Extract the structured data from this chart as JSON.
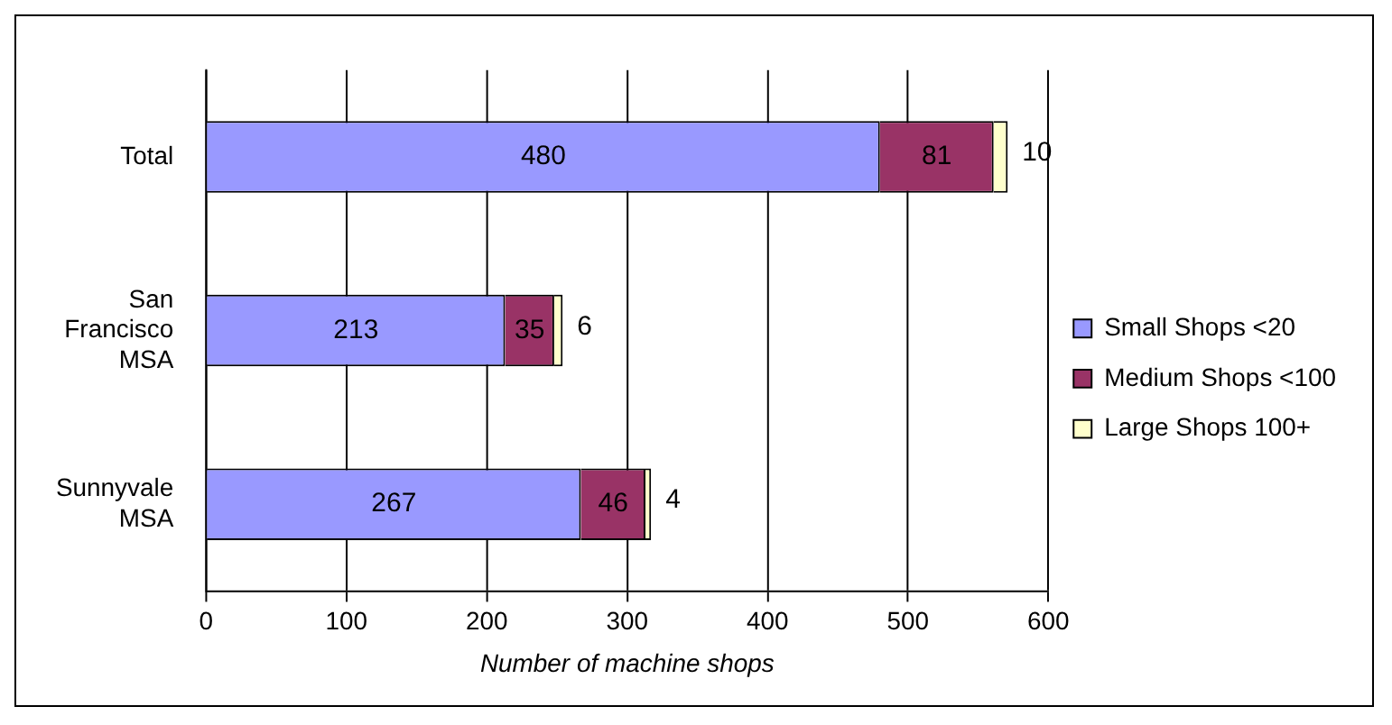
{
  "chart_data": {
    "type": "bar",
    "orientation": "horizontal",
    "stacked": true,
    "categories": [
      "Total",
      "San Francisco MSA",
      "Sunnyvale MSA"
    ],
    "series": [
      {
        "name": "Small Shops <20",
        "color": "#9999ff",
        "values": [
          480,
          213,
          267
        ]
      },
      {
        "name": "Medium Shops <100",
        "color": "#993366",
        "values": [
          81,
          35,
          46
        ]
      },
      {
        "name": "Large Shops 100+",
        "color": "#ffffcc",
        "values": [
          10,
          6,
          4
        ]
      }
    ],
    "xlabel": "Number of machine shops",
    "xlim": [
      0,
      600
    ],
    "xticks": [
      0,
      100,
      200,
      300,
      400,
      500,
      600
    ],
    "grid": "x",
    "legend": "right",
    "data_labels": true
  }
}
